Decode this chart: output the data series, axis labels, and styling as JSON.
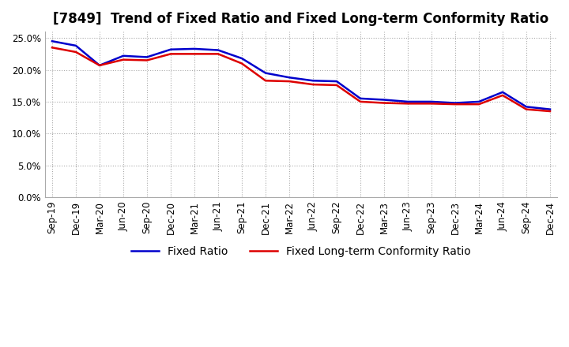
{
  "title": "[7849]  Trend of Fixed Ratio and Fixed Long-term Conformity Ratio",
  "x_labels": [
    "Sep-19",
    "Dec-19",
    "Mar-20",
    "Jun-20",
    "Sep-20",
    "Dec-20",
    "Mar-21",
    "Jun-21",
    "Sep-21",
    "Dec-21",
    "Mar-22",
    "Jun-22",
    "Sep-22",
    "Dec-22",
    "Mar-23",
    "Jun-23",
    "Sep-23",
    "Dec-23",
    "Mar-24",
    "Jun-24",
    "Sep-24",
    "Dec-24"
  ],
  "fixed_ratio": [
    0.245,
    0.238,
    0.207,
    0.222,
    0.22,
    0.232,
    0.233,
    0.231,
    0.218,
    0.195,
    0.188,
    0.183,
    0.182,
    0.155,
    0.153,
    0.15,
    0.15,
    0.148,
    0.15,
    0.165,
    0.142,
    0.138
  ],
  "fixed_lt_conformity": [
    0.235,
    0.228,
    0.207,
    0.216,
    0.215,
    0.225,
    0.225,
    0.225,
    0.21,
    0.183,
    0.182,
    0.177,
    0.176,
    0.15,
    0.148,
    0.147,
    0.147,
    0.146,
    0.146,
    0.16,
    0.138,
    0.135
  ],
  "ylim": [
    0.0,
    0.26
  ],
  "yticks": [
    0.0,
    0.05,
    0.1,
    0.15,
    0.2,
    0.25
  ],
  "line_color_fixed": "#0000cc",
  "line_color_lt": "#dd0000",
  "grid_color": "#aaaaaa",
  "background_color": "#ffffff",
  "legend_fixed": "Fixed Ratio",
  "legend_lt": "Fixed Long-term Conformity Ratio",
  "title_fontsize": 12,
  "tick_fontsize": 8.5,
  "legend_fontsize": 10
}
